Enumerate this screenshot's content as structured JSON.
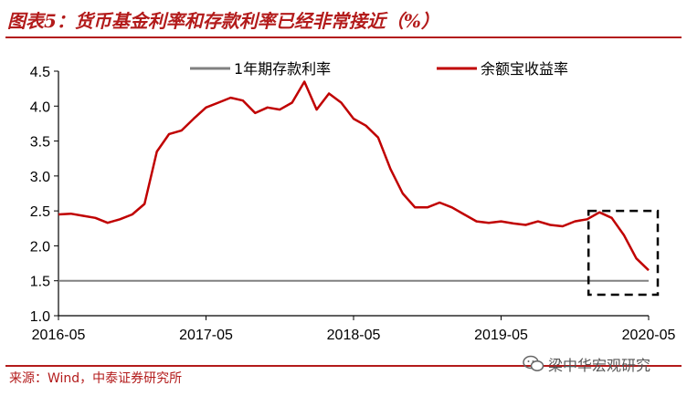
{
  "figure_title": "图表5：货币基金利率和存款利率已经非常接近（%）",
  "source_note": "来源：Wind，中泰证券研究所",
  "watermark": "梁中华宏观研究",
  "colors": {
    "title": "#b31b1b",
    "deposit_line": "#808080",
    "yuebao_line": "#c00000",
    "axis": "#000000"
  },
  "chart_data": {
    "type": "line",
    "title": "",
    "xlabel": "",
    "ylabel": "",
    "ylim": [
      1.0,
      4.5
    ],
    "yticks": [
      "1.0",
      "1.5",
      "2.0",
      "2.5",
      "3.0",
      "3.5",
      "4.0",
      "4.5"
    ],
    "xlim": [
      "2016-05",
      "2020-05"
    ],
    "xticks": [
      "2016-05",
      "2017-05",
      "2018-05",
      "2019-05",
      "2020-05"
    ],
    "grid": false,
    "legend_placement": "top",
    "annotation": "dashed box highlighting 2020 decline",
    "series": [
      {
        "name": "1年期存款利率",
        "color": "#808080",
        "points": [
          [
            "2016-05",
            1.5
          ],
          [
            "2020-05",
            1.5
          ]
        ]
      },
      {
        "name": "余额宝收益率",
        "color": "#c00000",
        "points": [
          [
            "2016-05",
            2.45
          ],
          [
            "2016-06",
            2.46
          ],
          [
            "2016-07",
            2.43
          ],
          [
            "2016-08",
            2.4
          ],
          [
            "2016-09",
            2.33
          ],
          [
            "2016-10",
            2.38
          ],
          [
            "2016-11",
            2.45
          ],
          [
            "2016-12",
            2.6
          ],
          [
            "2017-01",
            3.35
          ],
          [
            "2017-02",
            3.6
          ],
          [
            "2017-03",
            3.65
          ],
          [
            "2017-04",
            3.82
          ],
          [
            "2017-05",
            3.98
          ],
          [
            "2017-06",
            4.05
          ],
          [
            "2017-07",
            4.12
          ],
          [
            "2017-08",
            4.08
          ],
          [
            "2017-09",
            3.9
          ],
          [
            "2017-10",
            3.98
          ],
          [
            "2017-11",
            3.95
          ],
          [
            "2017-12",
            4.05
          ],
          [
            "2018-01",
            4.35
          ],
          [
            "2018-02",
            3.95
          ],
          [
            "2018-03",
            4.18
          ],
          [
            "2018-04",
            4.05
          ],
          [
            "2018-05",
            3.82
          ],
          [
            "2018-06",
            3.72
          ],
          [
            "2018-07",
            3.55
          ],
          [
            "2018-08",
            3.1
          ],
          [
            "2018-09",
            2.75
          ],
          [
            "2018-10",
            2.55
          ],
          [
            "2018-11",
            2.55
          ],
          [
            "2018-12",
            2.62
          ],
          [
            "2019-01",
            2.55
          ],
          [
            "2019-02",
            2.45
          ],
          [
            "2019-03",
            2.35
          ],
          [
            "2019-04",
            2.33
          ],
          [
            "2019-05",
            2.35
          ],
          [
            "2019-06",
            2.32
          ],
          [
            "2019-07",
            2.3
          ],
          [
            "2019-08",
            2.35
          ],
          [
            "2019-09",
            2.3
          ],
          [
            "2019-10",
            2.28
          ],
          [
            "2019-11",
            2.35
          ],
          [
            "2019-12",
            2.38
          ],
          [
            "2020-01",
            2.48
          ],
          [
            "2020-02",
            2.4
          ],
          [
            "2020-03",
            2.15
          ],
          [
            "2020-04",
            1.82
          ],
          [
            "2020-05",
            1.65
          ]
        ]
      }
    ]
  }
}
